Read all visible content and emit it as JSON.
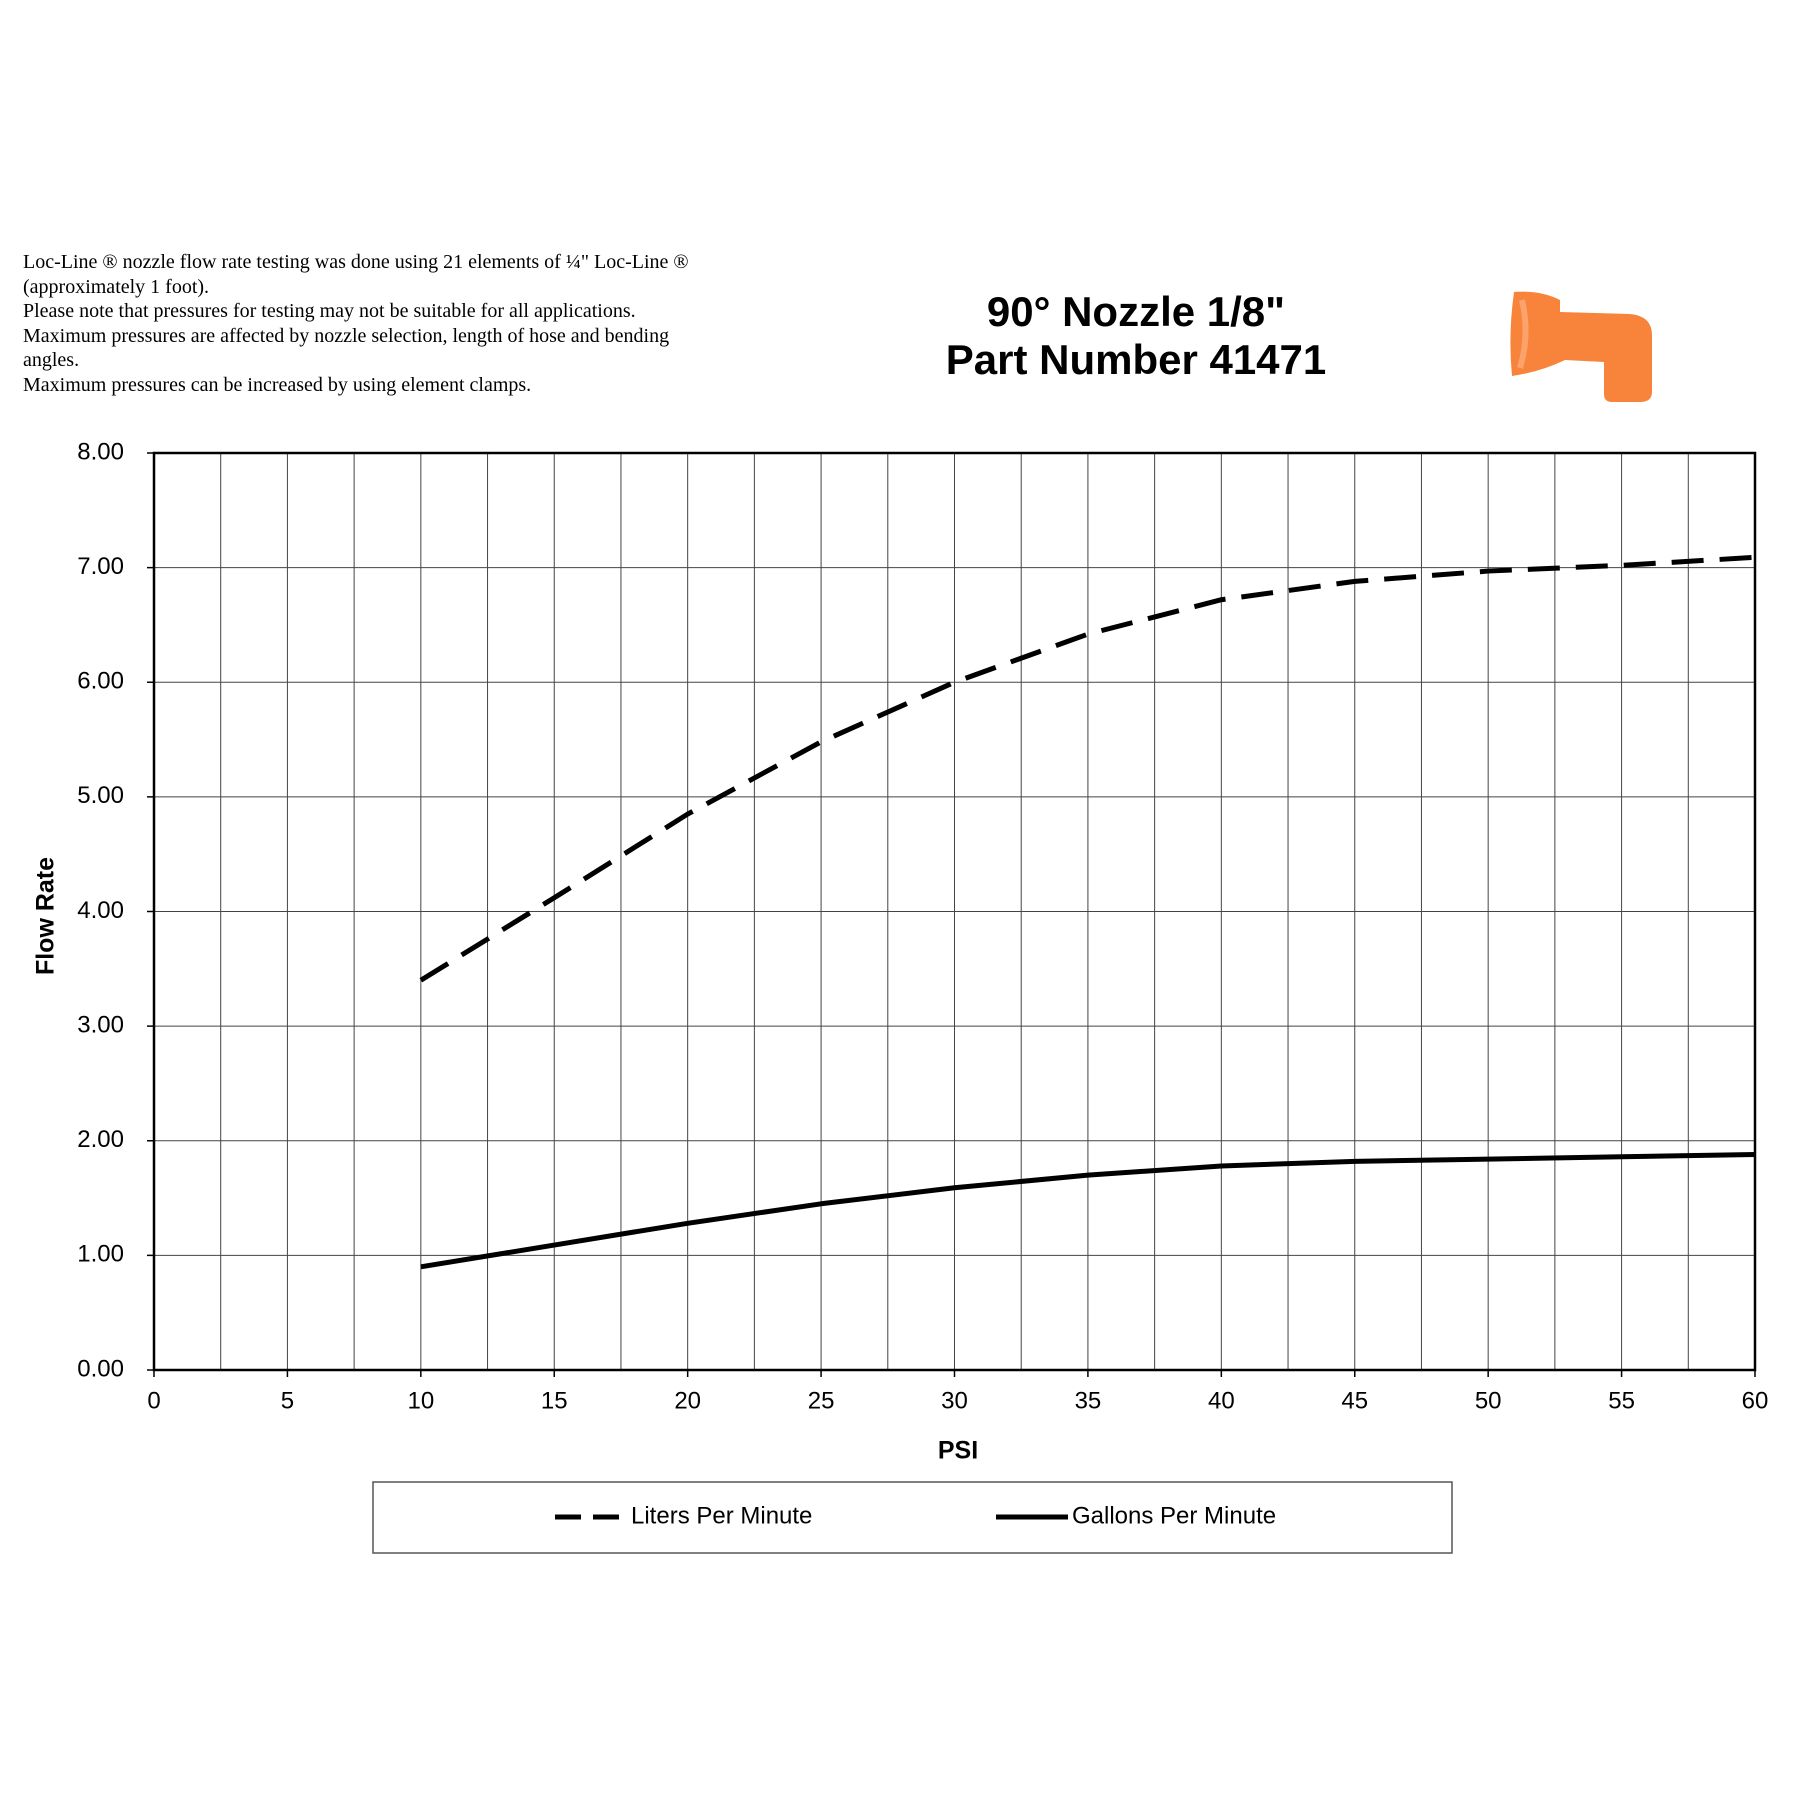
{
  "notes": [
    "Loc-Line ® nozzle flow rate testing was done using 21 elements of ¼\" Loc-Line ® (approximately 1 foot).",
    "Please note that pressures for testing may not be suitable for all applications.",
    "Maximum pressures are affected by nozzle selection, length of hose and bending angles.",
    "Maximum pressures can be increased by using element clamps."
  ],
  "chart_data": {
    "type": "line",
    "title": [
      "90° Nozzle 1/8\"",
      "Part Number 41471"
    ],
    "x_label": "PSI",
    "y_label": "Flow Rate",
    "x": [
      10,
      15,
      20,
      25,
      30,
      35,
      40,
      45,
      50,
      55,
      60
    ],
    "series": [
      {
        "name": "Liters Per Minute",
        "color": "#000000",
        "dash": "dashed",
        "values": [
          3.4,
          4.12,
          4.85,
          5.48,
          6.0,
          6.42,
          6.72,
          6.88,
          6.97,
          7.02,
          7.09
        ]
      },
      {
        "name": "Gallons Per Minute",
        "color": "#000000",
        "dash": "solid",
        "values": [
          0.9,
          1.09,
          1.28,
          1.45,
          1.59,
          1.7,
          1.78,
          1.82,
          1.84,
          1.86,
          1.88
        ]
      }
    ],
    "xlim": [
      0,
      60
    ],
    "xticks": [
      0,
      5,
      10,
      15,
      20,
      25,
      30,
      35,
      40,
      45,
      50,
      55,
      60
    ],
    "x_minor_grid": [
      2.5,
      7.5,
      12.5,
      17.5,
      22.5,
      27.5,
      32.5,
      37.5,
      42.5,
      47.5,
      52.5,
      57.5
    ],
    "ylim": [
      0,
      8
    ],
    "yticks": [
      {
        "value": 0,
        "label": "0.00"
      },
      {
        "value": 1,
        "label": "1.00"
      },
      {
        "value": 2,
        "label": "2.00"
      },
      {
        "value": 3,
        "label": "3.00"
      },
      {
        "value": 4,
        "label": "4.00"
      },
      {
        "value": 5,
        "label": "5.00"
      },
      {
        "value": 6,
        "label": "6.00"
      },
      {
        "value": 7,
        "label": "7.00"
      },
      {
        "value": 8,
        "label": "8.00"
      }
    ],
    "grid": true,
    "legend": "bottom"
  }
}
